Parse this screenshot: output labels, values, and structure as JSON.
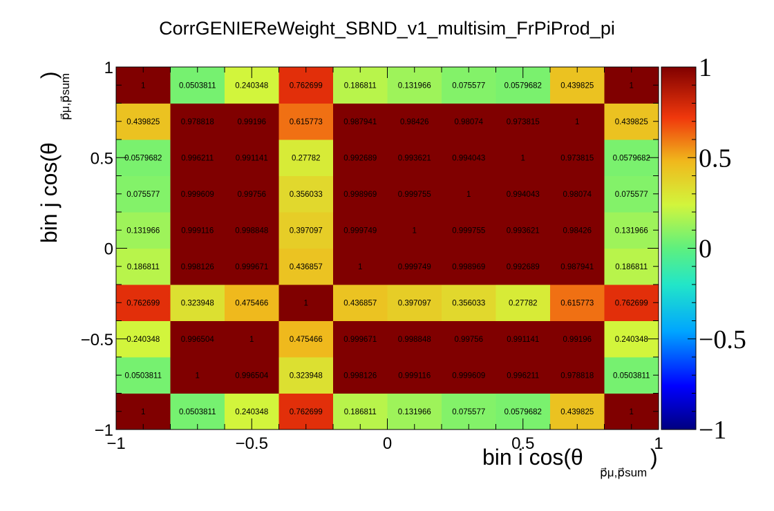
{
  "chart_data": {
    "type": "heatmap",
    "title": "CorrGENIEReWeight_SBND_v1_multisim_FrPiProd_pi",
    "xlabel": "bin i cos(θ",
    "xlabel_sub": "p⃗μ,p⃗sum",
    "xlabel_close": ")",
    "ylabel": "bin j cos(θ",
    "ylabel_sub": "p⃗μ,p⃗sum",
    "ylabel_close": ")",
    "xlim": [
      -1,
      1
    ],
    "ylim": [
      -1,
      1
    ],
    "zlim": [
      -1,
      1
    ],
    "x_ticks": [
      "−1",
      "−0.5",
      "0",
      "0.5",
      "1"
    ],
    "y_ticks": [
      "−1",
      "−0.5",
      "0",
      "0.5",
      "1"
    ],
    "palette_ticks": [
      "−1",
      "−0.5",
      "0",
      "0.5",
      "1"
    ],
    "nbins": 10,
    "values": [
      [
        1,
        0.0503811,
        0.240348,
        0.762699,
        0.186811,
        0.131966,
        0.075577,
        0.0579682,
        0.439825,
        1
      ],
      [
        0.0503811,
        1,
        0.996504,
        0.323948,
        0.998126,
        0.999116,
        0.999609,
        0.996211,
        0.978818,
        0.0503811
      ],
      [
        0.240348,
        0.996504,
        1,
        0.475466,
        0.999671,
        0.998848,
        0.99756,
        0.991141,
        0.99196,
        0.240348
      ],
      [
        0.762699,
        0.323948,
        0.475466,
        1,
        0.436857,
        0.397097,
        0.356033,
        0.27782,
        0.615773,
        0.762699
      ],
      [
        0.186811,
        0.998126,
        0.999671,
        0.436857,
        1,
        0.999749,
        0.998969,
        0.992689,
        0.987941,
        0.186811
      ],
      [
        0.131966,
        0.999116,
        0.998848,
        0.397097,
        0.999749,
        1,
        0.999755,
        0.993621,
        0.98426,
        0.131966
      ],
      [
        0.075577,
        0.999609,
        0.99756,
        0.356033,
        0.998969,
        0.999755,
        1,
        0.994043,
        0.98074,
        0.075577
      ],
      [
        0.0579682,
        0.996211,
        0.991141,
        0.27782,
        0.992689,
        0.993621,
        0.994043,
        1,
        0.973815,
        0.0579682
      ],
      [
        0.439825,
        0.978818,
        0.99196,
        0.615773,
        0.987941,
        0.98426,
        0.98074,
        0.973815,
        1,
        0.439825
      ],
      [
        1,
        0.0503811,
        0.240348,
        0.762699,
        0.186811,
        0.131966,
        0.075577,
        0.0579682,
        0.439825,
        1
      ]
    ]
  }
}
